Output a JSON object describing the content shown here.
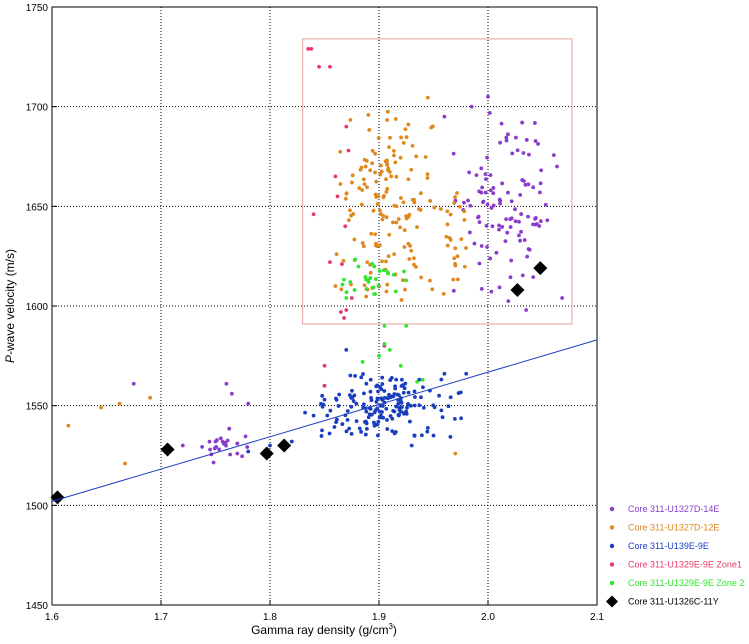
{
  "chart_data": {
    "type": "scatter",
    "title": "",
    "xlabel": "Gamma ray density (g/cm³)",
    "xlabel_main": "Gamma ray density (g/cm",
    "xlabel_sup": "3",
    "xlabel_end": ")",
    "ylabel": "P-wave velocity (m/s)",
    "ylabel_italic": "P",
    "ylabel_rest": "-wave velocity (m/s)",
    "xlim": [
      1.6,
      2.1
    ],
    "ylim": [
      1450,
      1750
    ],
    "xticks": [
      "1.6",
      "1.7",
      "1.8",
      "1.9",
      "2.0",
      "2.1"
    ],
    "yticks": [
      "1450",
      "1500",
      "1550",
      "1600",
      "1650",
      "1700",
      "1750"
    ],
    "grid": "dotted, at major ticks",
    "legend_position": "bottom-right",
    "highlight_box": {
      "x0": 1.83,
      "x1": 2.077,
      "y0": 1591,
      "y1": 1734,
      "color": "#e8a0a0"
    },
    "trendline": {
      "from": [
        1.6,
        1502
      ],
      "to": [
        2.1,
        1583
      ],
      "color": "#2040c0"
    },
    "series": [
      {
        "name": "Core 311-U1327D-14E",
        "color": "#8a3dcc",
        "marker": "dot",
        "clusters": [
          {
            "count": 110,
            "x": [
              1.965,
              2.07
            ],
            "y": [
              1600,
              1700
            ],
            "seed": 11
          },
          {
            "count": 20,
            "x": [
              1.73,
              1.79
            ],
            "y": [
              1520,
              1540
            ],
            "seed": 12
          }
        ],
        "points": [
          [
            1.675,
            1561
          ],
          [
            1.76,
            1561
          ],
          [
            1.765,
            1556
          ],
          [
            1.78,
            1551
          ],
          [
            1.985,
            1700
          ],
          [
            2.0,
            1705
          ],
          [
            1.96,
            1695
          ],
          [
            2.068,
            1604
          ],
          [
            2.035,
            1598
          ],
          [
            1.71,
            1528
          ],
          [
            1.72,
            1530
          ],
          [
            1.75,
            1532
          ],
          [
            1.77,
            1526
          ],
          [
            1.77,
            1531
          ],
          [
            1.745,
            1528
          ]
        ]
      },
      {
        "name": "Core 311-U1327D-12E",
        "color": "#e08820",
        "marker": "dot",
        "clusters": [
          {
            "count": 150,
            "x": [
              1.855,
              1.96
            ],
            "y": [
              1598,
              1708
            ],
            "seed": 21
          },
          {
            "count": 25,
            "x": [
              1.955,
              1.985
            ],
            "y": [
              1600,
              1660
            ],
            "seed": 22
          }
        ],
        "points": [
          [
            1.615,
            1540
          ],
          [
            1.645,
            1549
          ],
          [
            1.662,
            1551
          ],
          [
            1.667,
            1521
          ],
          [
            1.69,
            1554
          ],
          [
            1.97,
            1526
          ],
          [
            1.86,
            1610
          ]
        ]
      },
      {
        "name": "Core 311-U139E-9E",
        "color": "#1a3ec0",
        "marker": "dot",
        "clusters": [
          {
            "count": 170,
            "x": [
              1.83,
              1.98
            ],
            "y": [
              1532,
              1568
            ],
            "seed": 31
          }
        ],
        "points": [
          [
            1.78,
            1527
          ],
          [
            1.8,
            1530
          ],
          [
            1.82,
            1532
          ],
          [
            1.85,
            1560
          ],
          [
            1.85,
            1553
          ],
          [
            1.84,
            1545
          ],
          [
            1.87,
            1578
          ],
          [
            1.93,
            1530
          ],
          [
            1.95,
            1535
          ],
          [
            1.96,
            1566
          ],
          [
            1.98,
            1566
          ]
        ]
      },
      {
        "name": "Core 311-U1329E-9E Zone1",
        "color": "#e83a6a",
        "marker": "dot",
        "clusters": [],
        "points": [
          [
            1.835,
            1729
          ],
          [
            1.838,
            1729
          ],
          [
            1.845,
            1720
          ],
          [
            1.855,
            1720
          ],
          [
            1.84,
            1646
          ],
          [
            1.86,
            1665
          ],
          [
            1.862,
            1655
          ],
          [
            1.87,
            1690
          ],
          [
            1.872,
            1678
          ],
          [
            1.865,
            1597
          ],
          [
            1.866,
            1621
          ],
          [
            1.869,
            1640
          ],
          [
            1.87,
            1598
          ],
          [
            1.875,
            1604
          ],
          [
            1.855,
            1622
          ],
          [
            1.85,
            1560
          ],
          [
            1.85,
            1570
          ],
          [
            1.905,
            1580
          ],
          [
            1.9,
            1610
          ],
          [
            1.868,
            1594
          ]
        ]
      },
      {
        "name": "Core 311-U1329E-9E Zone 2",
        "color": "#2ee82e",
        "marker": "dot",
        "clusters": [
          {
            "count": 28,
            "x": [
              1.86,
              1.93
            ],
            "y": [
              1602,
              1626
            ],
            "seed": 51
          }
        ],
        "points": [
          [
            1.905,
            1590
          ],
          [
            1.925,
            1590
          ],
          [
            1.905,
            1581
          ],
          [
            1.91,
            1578
          ],
          [
            1.92,
            1570
          ],
          [
            1.94,
            1563
          ],
          [
            1.935,
            1562
          ],
          [
            1.9,
            1575
          ],
          [
            1.885,
            1572
          ],
          [
            1.87,
            1604
          ]
        ]
      },
      {
        "name": "Core 311-U1326C-11Y",
        "color": "#000000",
        "marker": "diamond",
        "clusters": [],
        "points": [
          [
            1.605,
            1504
          ],
          [
            1.706,
            1528
          ],
          [
            1.797,
            1526
          ],
          [
            1.813,
            1530
          ],
          [
            2.027,
            1608
          ],
          [
            2.048,
            1619
          ]
        ]
      }
    ]
  }
}
